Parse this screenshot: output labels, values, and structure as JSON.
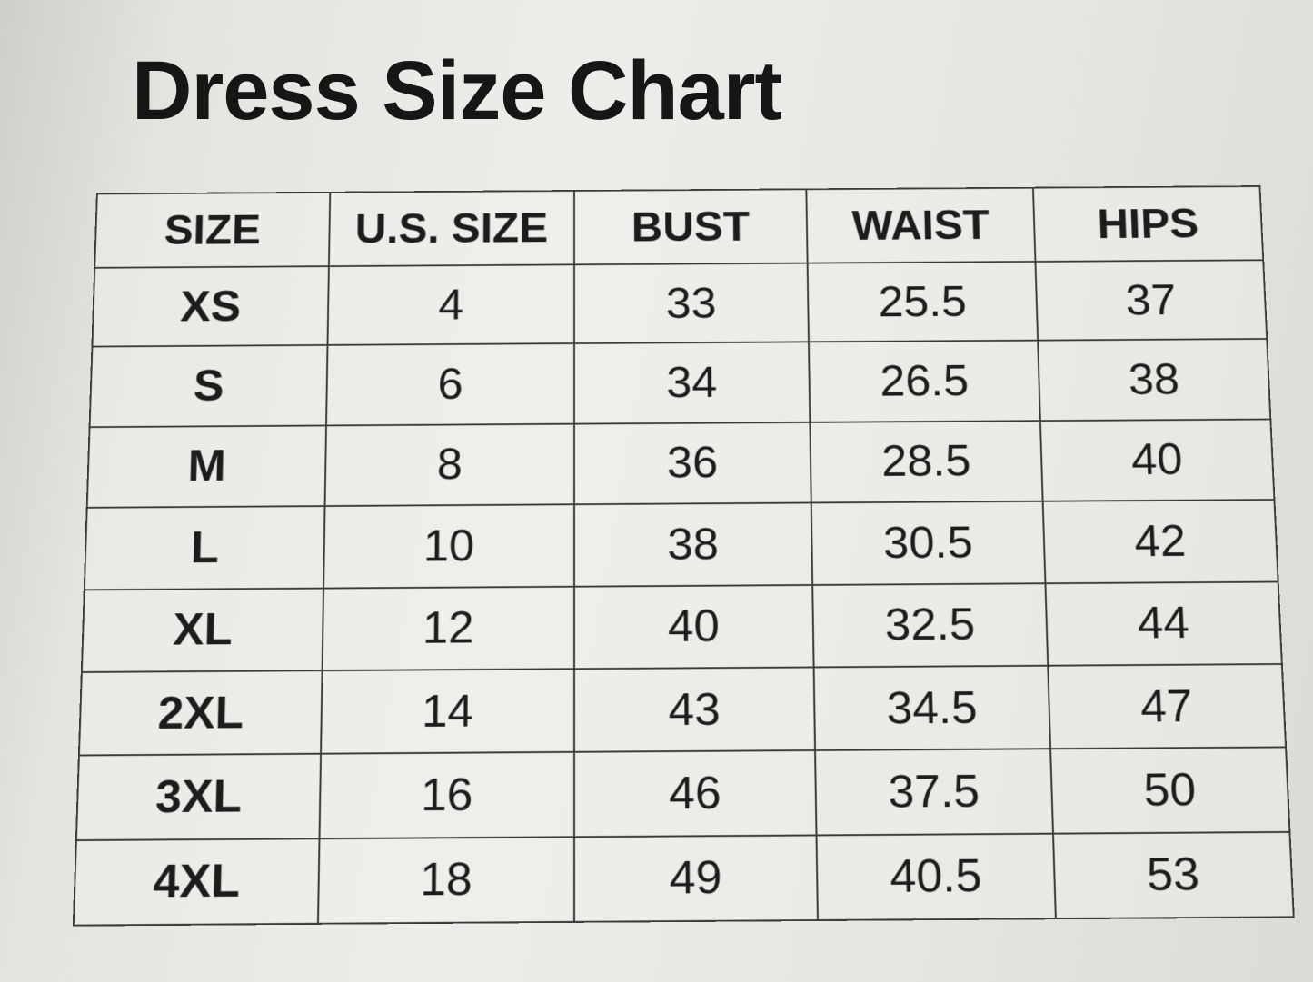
{
  "title": "Dress Size Chart",
  "table": {
    "headers": [
      "SIZE",
      "U.S. SIZE",
      "BUST",
      "WAIST",
      "HIPS"
    ],
    "rows": [
      [
        "XS",
        "4",
        "33",
        "25.5",
        "37"
      ],
      [
        "S",
        "6",
        "34",
        "26.5",
        "38"
      ],
      [
        "M",
        "8",
        "36",
        "28.5",
        "40"
      ],
      [
        "L",
        "10",
        "38",
        "30.5",
        "42"
      ],
      [
        "XL",
        "12",
        "40",
        "32.5",
        "44"
      ],
      [
        "2XL",
        "14",
        "43",
        "34.5",
        "47"
      ],
      [
        "3XL",
        "16",
        "46",
        "37.5",
        "50"
      ],
      [
        "4XL",
        "18",
        "49",
        "40.5",
        "53"
      ]
    ]
  }
}
